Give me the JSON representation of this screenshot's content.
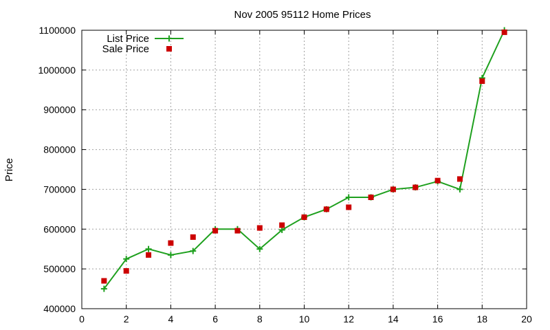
{
  "chart_data": {
    "type": "line",
    "title": "Nov 2005 95112 Home Prices",
    "xlabel": "",
    "ylabel": "Price",
    "xlim": [
      0,
      20
    ],
    "ylim": [
      400000,
      1100000
    ],
    "xticks": [
      0,
      2,
      4,
      6,
      8,
      10,
      12,
      14,
      16,
      18,
      20
    ],
    "yticks": [
      400000,
      500000,
      600000,
      700000,
      800000,
      900000,
      1000000,
      1100000
    ],
    "grid": true,
    "legend_position": "top-left",
    "series": [
      {
        "name": "List Price",
        "style": "line with plus markers",
        "color": "#1ea01e",
        "x": [
          1,
          2,
          3,
          4,
          5,
          6,
          7,
          8,
          9,
          10,
          11,
          12,
          13,
          14,
          15,
          16,
          17,
          18,
          19
        ],
        "y": [
          450000,
          525000,
          550000,
          535000,
          545000,
          600000,
          600000,
          550000,
          598000,
          630000,
          650000,
          680000,
          680000,
          700000,
          705000,
          720000,
          700000,
          980000,
          1100000
        ]
      },
      {
        "name": "Sale Price",
        "style": "square markers",
        "color": "#cc0000",
        "x": [
          1,
          2,
          3,
          4,
          5,
          6,
          7,
          8,
          9,
          10,
          11,
          12,
          13,
          14,
          15,
          16,
          17,
          18,
          19
        ],
        "y": [
          470000,
          495000,
          535000,
          565000,
          580000,
          596000,
          596000,
          603000,
          610000,
          630000,
          650000,
          655000,
          680000,
          700000,
          705000,
          722000,
          726000,
          972000,
          1095000
        ]
      }
    ]
  }
}
